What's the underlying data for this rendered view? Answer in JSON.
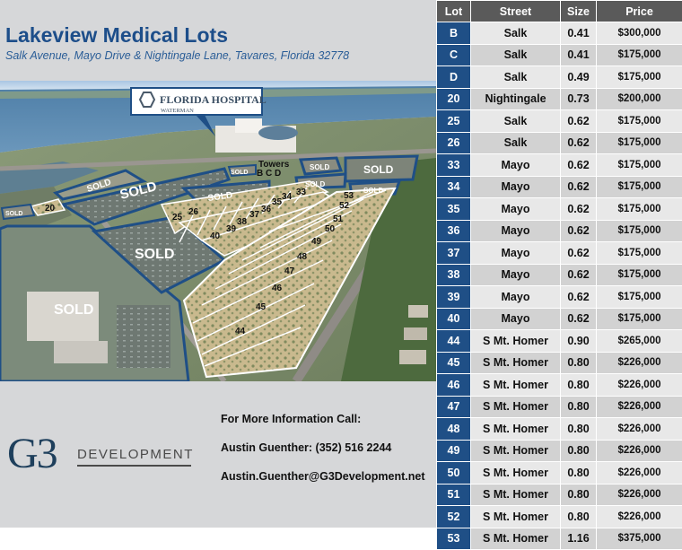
{
  "header": {
    "title": "Lakeview Medical Lots",
    "subtitle": "Salk Avenue, Mayo Drive & Nightingale Lane, Tavares, Florida 32778"
  },
  "map": {
    "hospital_name": "FLORIDA HOSPITAL",
    "hospital_sub": "WATERMAN",
    "towers_label": "Towers",
    "towers_letters": "B  C  D",
    "sold_label": "SOLD",
    "lot_labels": [
      "20",
      "25",
      "26",
      "40",
      "39",
      "38",
      "37",
      "36",
      "35",
      "34",
      "33",
      "53",
      "52",
      "51",
      "50",
      "49",
      "48",
      "47",
      "46",
      "45",
      "44"
    ]
  },
  "logo": {
    "mark": "G3",
    "text": "DEVELOPMENT"
  },
  "contact": {
    "heading": "For More Information Call:",
    "name_phone": "Austin Guenther: (352) 516 2244",
    "email": "Austin.Guenther@G3Development.net"
  },
  "table": {
    "headers": [
      "Lot",
      "Street",
      "Size",
      "Price"
    ],
    "rows": [
      {
        "lot": "B",
        "street": "Salk",
        "size": "0.41",
        "price": "$300,000"
      },
      {
        "lot": "C",
        "street": "Salk",
        "size": "0.41",
        "price": "$175,000"
      },
      {
        "lot": "D",
        "street": "Salk",
        "size": "0.49",
        "price": "$175,000"
      },
      {
        "lot": "20",
        "street": "Nightingale",
        "size": "0.73",
        "price": "$200,000"
      },
      {
        "lot": "25",
        "street": "Salk",
        "size": "0.62",
        "price": "$175,000"
      },
      {
        "lot": "26",
        "street": "Salk",
        "size": "0.62",
        "price": "$175,000"
      },
      {
        "lot": "33",
        "street": "Mayo",
        "size": "0.62",
        "price": "$175,000"
      },
      {
        "lot": "34",
        "street": "Mayo",
        "size": "0.62",
        "price": "$175,000"
      },
      {
        "lot": "35",
        "street": "Mayo",
        "size": "0.62",
        "price": "$175,000"
      },
      {
        "lot": "36",
        "street": "Mayo",
        "size": "0.62",
        "price": "$175,000"
      },
      {
        "lot": "37",
        "street": "Mayo",
        "size": "0.62",
        "price": "$175,000"
      },
      {
        "lot": "38",
        "street": "Mayo",
        "size": "0.62",
        "price": "$175,000"
      },
      {
        "lot": "39",
        "street": "Mayo",
        "size": "0.62",
        "price": "$175,000"
      },
      {
        "lot": "40",
        "street": "Mayo",
        "size": "0.62",
        "price": "$175,000"
      },
      {
        "lot": "44",
        "street": "S Mt. Homer",
        "size": "0.90",
        "price": "$265,000"
      },
      {
        "lot": "45",
        "street": "S Mt. Homer",
        "size": "0.80",
        "price": "$226,000"
      },
      {
        "lot": "46",
        "street": "S Mt. Homer",
        "size": "0.80",
        "price": "$226,000"
      },
      {
        "lot": "47",
        "street": "S Mt. Homer",
        "size": "0.80",
        "price": "$226,000"
      },
      {
        "lot": "48",
        "street": "S Mt. Homer",
        "size": "0.80",
        "price": "$226,000"
      },
      {
        "lot": "49",
        "street": "S Mt. Homer",
        "size": "0.80",
        "price": "$226,000"
      },
      {
        "lot": "50",
        "street": "S Mt. Homer",
        "size": "0.80",
        "price": "$226,000"
      },
      {
        "lot": "51",
        "street": "S Mt. Homer",
        "size": "0.80",
        "price": "$226,000"
      },
      {
        "lot": "52",
        "street": "S Mt. Homer",
        "size": "0.80",
        "price": "$226,000"
      },
      {
        "lot": "53",
        "street": "S Mt. Homer",
        "size": "1.16",
        "price": "$375,000"
      }
    ]
  },
  "colors": {
    "title_blue": "#1d4e8a",
    "lot_cell_blue": "#1f4f86",
    "header_gray": "#5a5a5a",
    "row_light": "#e8e8e8",
    "row_dark": "#d2d2d2",
    "sold_outline": "#1f4f86",
    "lot_outline": "#ffffff"
  },
  "icons": {
    "hospital_logo": "hospital-hexagon-icon"
  }
}
